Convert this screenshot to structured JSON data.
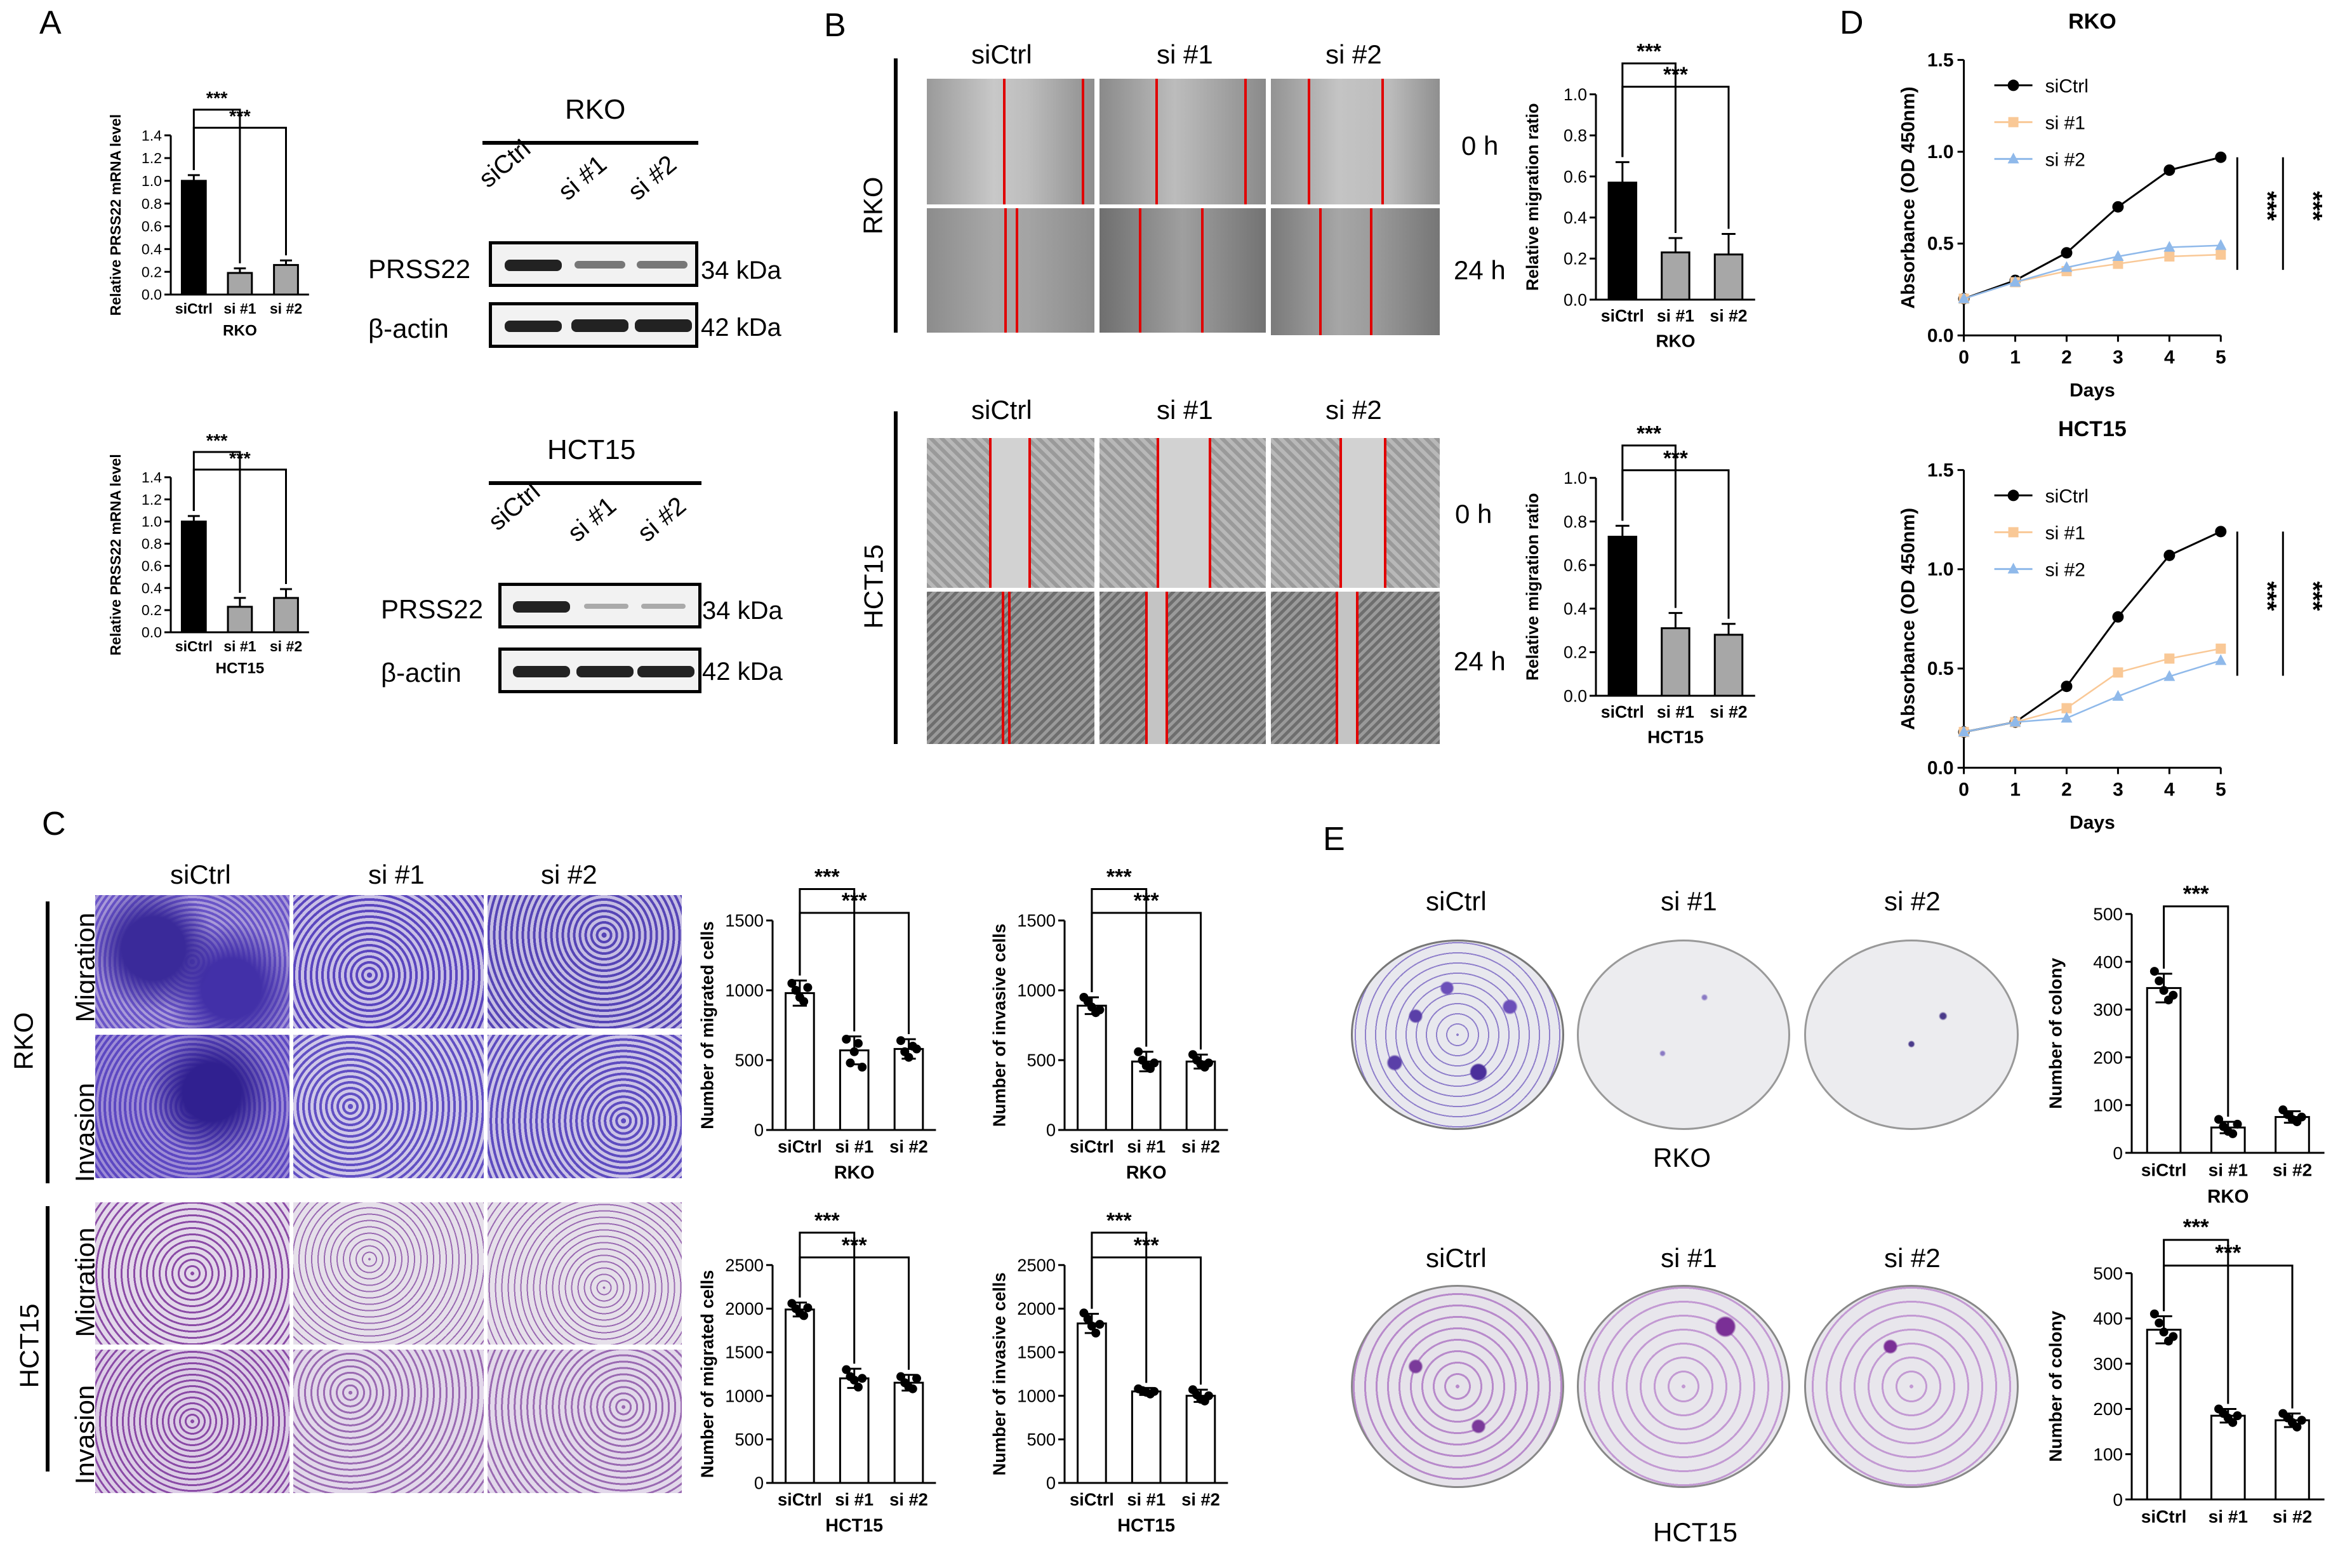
{
  "panels": {
    "A": "A",
    "B": "B",
    "C": "C",
    "D": "D",
    "E": "E"
  },
  "cells": {
    "rko": "RKO",
    "hct15": "HCT15"
  },
  "groups": [
    "siCtrl",
    "si #1",
    "si #2"
  ],
  "times": {
    "t0": "0 h",
    "t24": "24 h"
  },
  "assays": {
    "migration": "Migration",
    "invasion": "Invasion"
  },
  "western": {
    "protein1": "PRSS22",
    "size1": "34 kDa",
    "protein2": "β-actin",
    "size2": "42 kDa",
    "lanes": [
      "siCtrl",
      "si #1",
      "si #2"
    ]
  },
  "labels": {
    "mrna_y": "Relative PRSS22 mRNA level",
    "mig_ratio_y": "Relative migration ratio",
    "migrated_y": "Number of migrated cells",
    "invasive_y": "Number of invasive cells",
    "colony_y": "Number of colony",
    "abs_y": "Absorbance (OD 450nm)",
    "days": "Days",
    "sig": "***"
  },
  "colors": {
    "black": "#000000",
    "gray": "#a7a7a7",
    "orange": "#f9c896",
    "blue": "#8fb9ea",
    "stain": "#6a3fb3",
    "hctstain": "#8b3f9e",
    "red": "#e00000"
  },
  "chart_data": [
    {
      "type": "bar",
      "id": "A_rko",
      "categories": [
        "siCtrl",
        "si #1",
        "si #2"
      ],
      "values": [
        1.0,
        0.19,
        0.26
      ],
      "errors": [
        0.05,
        0.04,
        0.04
      ],
      "ylabel": "Relative PRSS22 mRNA level",
      "xlabel": "RKO",
      "ylim": [
        0,
        1.4
      ],
      "yticks": [
        "0.0",
        "0.2",
        "0.4",
        "0.6",
        "0.8",
        "1.0",
        "1.2",
        "1.4"
      ],
      "colors": [
        "#000000",
        "#a7a7a7",
        "#a7a7a7"
      ],
      "sig": [
        "***",
        "***"
      ]
    },
    {
      "type": "bar",
      "id": "A_hct",
      "categories": [
        "siCtrl",
        "si #1",
        "si #2"
      ],
      "values": [
        1.0,
        0.23,
        0.31
      ],
      "errors": [
        0.05,
        0.08,
        0.08
      ],
      "ylabel": "Relative PRSS22 mRNA level",
      "xlabel": "HCT15",
      "ylim": [
        0,
        1.4
      ],
      "yticks": [
        "0.0",
        "0.2",
        "0.4",
        "0.6",
        "0.8",
        "1.0",
        "1.2",
        "1.4"
      ],
      "colors": [
        "#000000",
        "#a7a7a7",
        "#a7a7a7"
      ],
      "sig": [
        "***",
        "***"
      ]
    },
    {
      "type": "bar",
      "id": "B_rko",
      "categories": [
        "siCtrl",
        "si #1",
        "si #2"
      ],
      "values": [
        0.57,
        0.23,
        0.22
      ],
      "errors": [
        0.1,
        0.07,
        0.1
      ],
      "ylabel": "Relative migration ratio",
      "xlabel": "RKO",
      "ylim": [
        0,
        1.0
      ],
      "yticks": [
        "0.0",
        "0.2",
        "0.4",
        "0.6",
        "0.8",
        "1.0"
      ],
      "colors": [
        "#000000",
        "#a7a7a7",
        "#a7a7a7"
      ],
      "sig": [
        "***",
        "***"
      ]
    },
    {
      "type": "bar",
      "id": "B_hct",
      "categories": [
        "siCtrl",
        "si #1",
        "si #2"
      ],
      "values": [
        0.73,
        0.31,
        0.28
      ],
      "errors": [
        0.05,
        0.07,
        0.05
      ],
      "ylabel": "Relative migration ratio",
      "xlabel": "HCT15",
      "ylim": [
        0,
        1.0
      ],
      "yticks": [
        "0.0",
        "0.2",
        "0.4",
        "0.6",
        "0.8",
        "1.0"
      ],
      "colors": [
        "#000000",
        "#a7a7a7",
        "#a7a7a7"
      ],
      "sig": [
        "***",
        "***"
      ]
    },
    {
      "type": "bar",
      "id": "C_rko_mig",
      "categories": [
        "siCtrl",
        "si #1",
        "si #2"
      ],
      "values": [
        980,
        570,
        580
      ],
      "errors": [
        90,
        100,
        70
      ],
      "ylabel": "Number of migrated cells",
      "xlabel": "RKO",
      "ylim": [
        0,
        1500
      ],
      "yticks": [
        "0",
        "500",
        "1000",
        "1500"
      ],
      "colors": [
        "#ffffff",
        "#ffffff",
        "#ffffff"
      ],
      "points": [
        [
          1050,
          1000,
          950,
          920,
          1020
        ],
        [
          650,
          480,
          560,
          620,
          450
        ],
        [
          640,
          560,
          520,
          600,
          580
        ]
      ],
      "sig": [
        "***",
        "***"
      ]
    },
    {
      "type": "bar",
      "id": "C_rko_inv",
      "categories": [
        "siCtrl",
        "si #1",
        "si #2"
      ],
      "values": [
        890,
        490,
        490
      ],
      "errors": [
        60,
        70,
        50
      ],
      "ylabel": "Number of invasive cells",
      "xlabel": "RKO",
      "ylim": [
        0,
        1500
      ],
      "yticks": [
        "0",
        "500",
        "1000",
        "1500"
      ],
      "colors": [
        "#ffffff",
        "#ffffff",
        "#ffffff"
      ],
      "points": [
        [
          950,
          920,
          880,
          840,
          860
        ],
        [
          560,
          500,
          460,
          440,
          480
        ],
        [
          540,
          500,
          470,
          450,
          480
        ]
      ],
      "sig": [
        "***",
        "***"
      ]
    },
    {
      "type": "bar",
      "id": "C_hct_mig",
      "categories": [
        "siCtrl",
        "si #1",
        "si #2"
      ],
      "values": [
        1990,
        1200,
        1150
      ],
      "errors": [
        80,
        110,
        90
      ],
      "ylabel": "Number of migrated cells",
      "xlabel": "HCT15",
      "ylim": [
        0,
        2500
      ],
      "yticks": [
        "0",
        "500",
        "1000",
        "1500",
        "2000",
        "2500"
      ],
      "colors": [
        "#ffffff",
        "#ffffff",
        "#ffffff"
      ],
      "points": [
        [
          2060,
          2000,
          1950,
          1920,
          2010
        ],
        [
          1300,
          1220,
          1180,
          1100,
          1200
        ],
        [
          1220,
          1150,
          1100,
          1080,
          1200
        ]
      ],
      "sig": [
        "***",
        "***"
      ]
    },
    {
      "type": "bar",
      "id": "C_hct_inv",
      "categories": [
        "siCtrl",
        "si #1",
        "si #2"
      ],
      "values": [
        1830,
        1050,
        1000
      ],
      "errors": [
        110,
        40,
        70
      ],
      "ylabel": "Number of invasive cells",
      "xlabel": "HCT15",
      "ylim": [
        0,
        2500
      ],
      "yticks": [
        "0",
        "500",
        "1000",
        "1500",
        "2000",
        "2500"
      ],
      "colors": [
        "#ffffff",
        "#ffffff",
        "#ffffff"
      ],
      "points": [
        [
          1950,
          1880,
          1800,
          1720,
          1820
        ],
        [
          1080,
          1060,
          1040,
          1020,
          1050
        ],
        [
          1070,
          1010,
          960,
          940,
          1000
        ]
      ],
      "sig": [
        "***",
        "***"
      ]
    },
    {
      "type": "bar",
      "id": "E_rko",
      "categories": [
        "siCtrl",
        "si #1",
        "si #2"
      ],
      "values": [
        345,
        53,
        75
      ],
      "errors": [
        30,
        12,
        12
      ],
      "ylabel": "Number of colony",
      "xlabel": "RKO",
      "ylim": [
        0,
        500
      ],
      "yticks": [
        "0",
        "100",
        "200",
        "300",
        "400",
        "500"
      ],
      "colors": [
        "#ffffff",
        "#ffffff",
        "#ffffff"
      ],
      "points": [
        [
          380,
          360,
          340,
          320,
          330
        ],
        [
          70,
          55,
          45,
          40,
          60
        ],
        [
          90,
          80,
          70,
          65,
          75
        ]
      ],
      "sig": [
        "***"
      ]
    },
    {
      "type": "bar",
      "id": "E_hct",
      "categories": [
        "siCtrl",
        "si #1",
        "si #2"
      ],
      "values": [
        375,
        185,
        175
      ],
      "errors": [
        30,
        15,
        15
      ],
      "ylabel": "Number of colony",
      "xlabel": "",
      "ylim": [
        0,
        500
      ],
      "yticks": [
        "0",
        "100",
        "200",
        "300",
        "400",
        "500"
      ],
      "colors": [
        "#ffffff",
        "#ffffff",
        "#ffffff"
      ],
      "points": [
        [
          410,
          390,
          370,
          350,
          360
        ],
        [
          200,
          190,
          180,
          170,
          185
        ],
        [
          190,
          180,
          170,
          160,
          175
        ]
      ],
      "sig": [
        "***",
        "***"
      ]
    },
    {
      "type": "line",
      "id": "D_rko",
      "title": "RKO",
      "x": [
        0,
        1,
        2,
        3,
        4,
        5
      ],
      "series": [
        {
          "name": "siCtrl",
          "values": [
            0.2,
            0.3,
            0.45,
            0.7,
            0.9,
            0.97
          ]
        },
        {
          "name": "si #1",
          "values": [
            0.2,
            0.29,
            0.35,
            0.39,
            0.43,
            0.44
          ]
        },
        {
          "name": "si #2",
          "values": [
            0.2,
            0.29,
            0.37,
            0.43,
            0.48,
            0.49
          ]
        }
      ],
      "xlabel": "Days",
      "ylabel": "Absorbance (OD 450nm)",
      "ylim": [
        0,
        1.5
      ],
      "yticks": [
        "0.0",
        "0.5",
        "1.0",
        "1.5"
      ],
      "legend": "top-left"
    },
    {
      "type": "line",
      "id": "D_hct",
      "title": "HCT15",
      "x": [
        0,
        1,
        2,
        3,
        4,
        5
      ],
      "series": [
        {
          "name": "siCtrl",
          "values": [
            0.18,
            0.23,
            0.41,
            0.76,
            1.07,
            1.19
          ]
        },
        {
          "name": "si #1",
          "values": [
            0.18,
            0.23,
            0.3,
            0.48,
            0.55,
            0.6
          ]
        },
        {
          "name": "si #2",
          "values": [
            0.18,
            0.23,
            0.25,
            0.36,
            0.46,
            0.54
          ]
        }
      ],
      "xlabel": "Days",
      "ylabel": "Absorbance (OD 450nm)",
      "ylim": [
        0,
        1.5
      ],
      "yticks": [
        "0.0",
        "0.5",
        "1.0",
        "1.5"
      ],
      "legend": "top-left"
    }
  ]
}
